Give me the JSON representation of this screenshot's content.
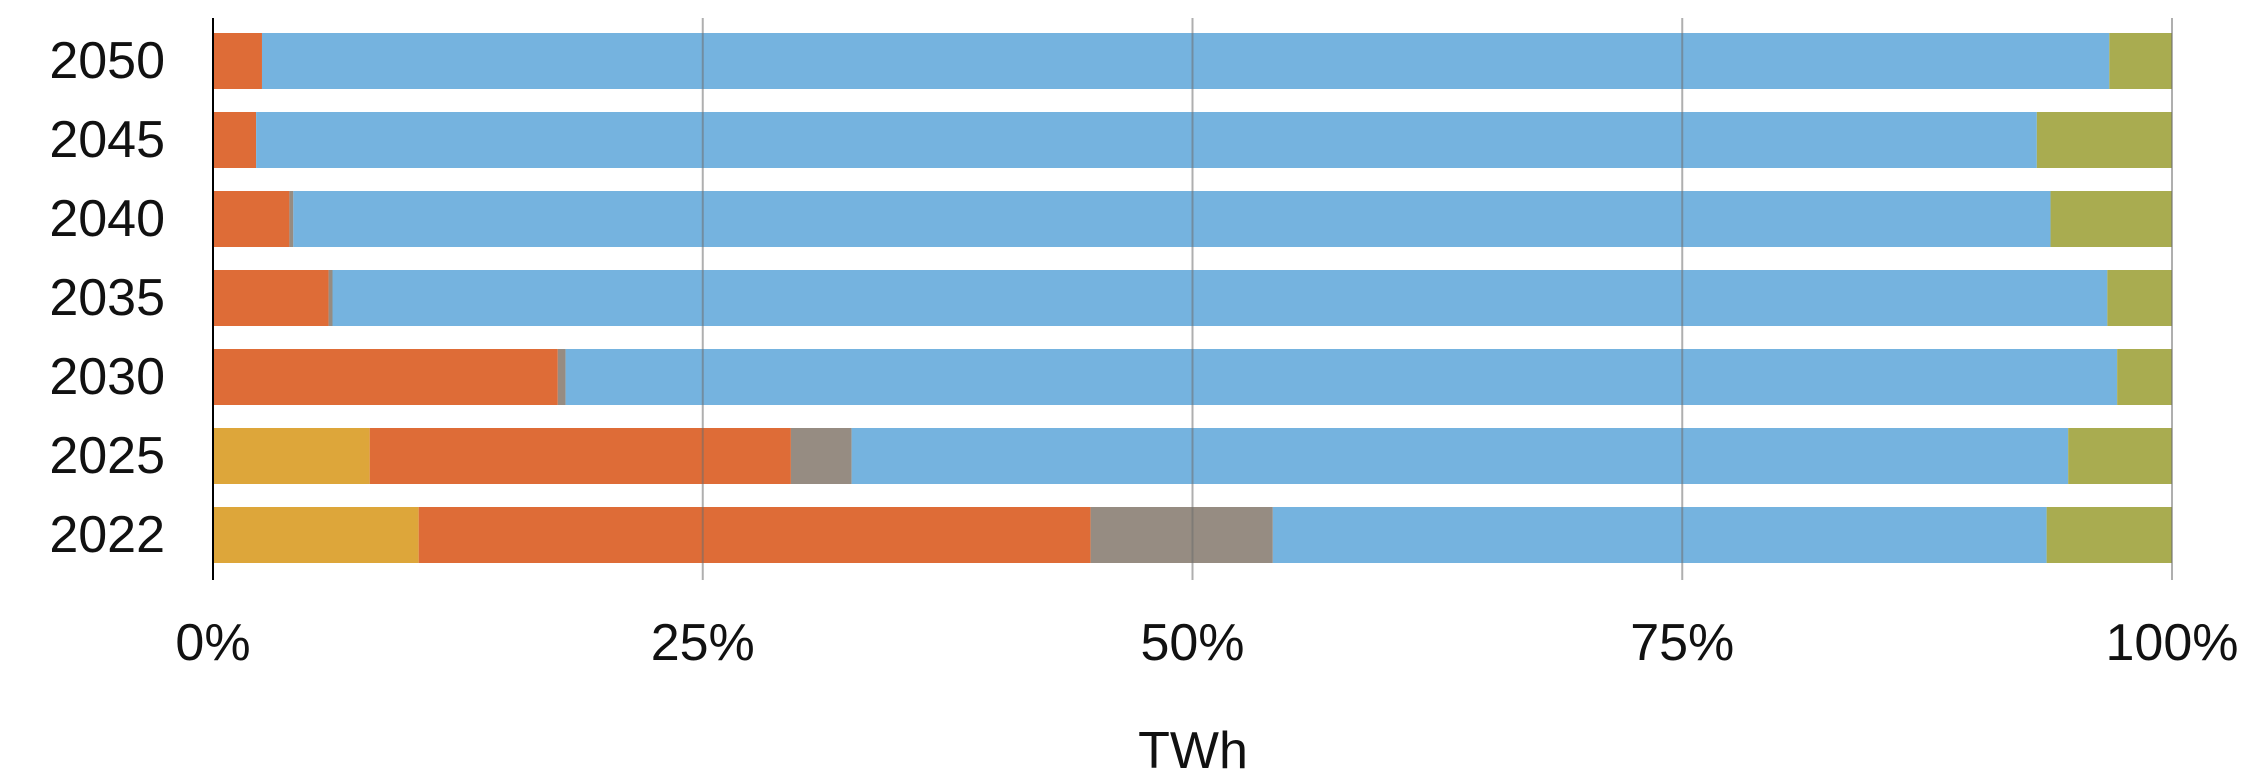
{
  "chart_data": {
    "type": "bar",
    "orientation": "horizontal",
    "stacked": "percent",
    "xlabel": "TWh",
    "ylabel": "",
    "title": "",
    "xlim": [
      0,
      100
    ],
    "x_ticks": [
      "0%",
      "25%",
      "50%",
      "75%",
      "100%"
    ],
    "x_tick_values": [
      0,
      25,
      50,
      75,
      100
    ],
    "grid": "vertical",
    "legend": "none",
    "categories": [
      "2050",
      "2045",
      "2040",
      "2035",
      "2030",
      "2025",
      "2022"
    ],
    "series": [
      {
        "color": "#DDA63A",
        "values": [
          0,
          0,
          0,
          0,
          0,
          8,
          10.5
        ]
      },
      {
        "color": "#DE6C37",
        "values": [
          2.5,
          2.2,
          3.9,
          5.9,
          17.6,
          21.5,
          34.3
        ]
      },
      {
        "color": "#968C82",
        "values": [
          0,
          0,
          0.2,
          0.2,
          0.4,
          3.1,
          9.3
        ]
      },
      {
        "color": "#75B3DF",
        "values": [
          94.3,
          90.9,
          89.7,
          90.6,
          79.2,
          62.1,
          39.5
        ]
      },
      {
        "color": "#A9AC50",
        "values": [
          3.2,
          6.9,
          6.2,
          3.3,
          2.8,
          5.3,
          6.4
        ]
      }
    ]
  }
}
